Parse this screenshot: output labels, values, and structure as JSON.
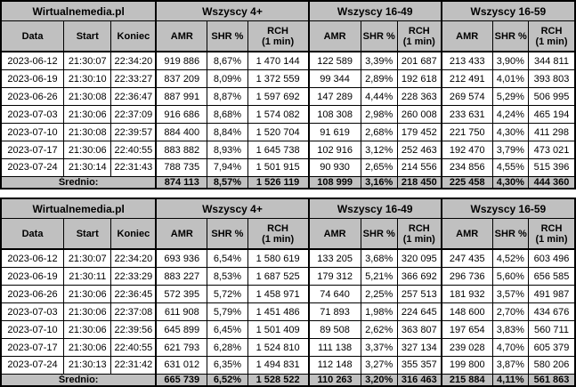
{
  "colors": {
    "header_bg": "#c0c0c0",
    "cell_bg": "#ffffff",
    "text": "#000000",
    "border": "#000000"
  },
  "columns": {
    "source": "Wirtualnemedia.pl",
    "groups": [
      "Wszyscy 4+",
      "Wszyscy 16-49",
      "Wszyscy 16-59"
    ],
    "left": [
      "Data",
      "Start",
      "Koniec"
    ],
    "metrics": [
      "AMR",
      "SHR %",
      "RCH\n(1 min)"
    ]
  },
  "tables": [
    {
      "rows": [
        [
          "2023-06-12",
          "21:30:07",
          "22:34:20",
          "919 886",
          "8,67%",
          "1 470 144",
          "122 589",
          "3,39%",
          "201 687",
          "213 433",
          "3,90%",
          "344 811"
        ],
        [
          "2023-06-19",
          "21:30:10",
          "22:33:27",
          "837 209",
          "8,09%",
          "1 372 559",
          "99 344",
          "2,89%",
          "192 618",
          "212 491",
          "4,01%",
          "393 803"
        ],
        [
          "2023-06-26",
          "21:30:08",
          "22:36:47",
          "887 991",
          "8,87%",
          "1 597 692",
          "147 289",
          "4,44%",
          "228 363",
          "269 574",
          "5,29%",
          "506 995"
        ],
        [
          "2023-07-03",
          "21:30:06",
          "22:37:09",
          "916 686",
          "8,68%",
          "1 574 082",
          "108 308",
          "2,98%",
          "260 008",
          "233 631",
          "4,24%",
          "465 194"
        ],
        [
          "2023-07-10",
          "21:30:08",
          "22:39:57",
          "884 400",
          "8,84%",
          "1 520 704",
          "91 619",
          "2,68%",
          "179 452",
          "221 750",
          "4,30%",
          "411 298"
        ],
        [
          "2023-07-17",
          "21:30:06",
          "22:40:55",
          "883 882",
          "8,93%",
          "1 645 738",
          "102 916",
          "3,12%",
          "252 463",
          "192 470",
          "3,79%",
          "473 021"
        ],
        [
          "2023-07-24",
          "21:30:14",
          "22:31:43",
          "788 735",
          "7,94%",
          "1 501 915",
          "90 930",
          "2,65%",
          "214 556",
          "234 856",
          "4,55%",
          "515 396"
        ]
      ],
      "summary": {
        "label": "Średnio:",
        "values": [
          "874 113",
          "8,57%",
          "1 526 119",
          "108 999",
          "3,16%",
          "218 450",
          "225 458",
          "4,30%",
          "444 360"
        ]
      }
    },
    {
      "rows": [
        [
          "2023-06-12",
          "21:30:07",
          "22:34:20",
          "693 936",
          "6,54%",
          "1 580 619",
          "133 205",
          "3,68%",
          "320 095",
          "247 435",
          "4,52%",
          "603 496"
        ],
        [
          "2023-06-19",
          "21:30:11",
          "22:33:29",
          "883 227",
          "8,53%",
          "1 687 525",
          "179 312",
          "5,21%",
          "366 692",
          "296 736",
          "5,60%",
          "656 585"
        ],
        [
          "2023-06-26",
          "21:30:06",
          "22:36:45",
          "572 395",
          "5,72%",
          "1 458 971",
          "74 640",
          "2,25%",
          "257 513",
          "181 932",
          "3,57%",
          "491 987"
        ],
        [
          "2023-07-03",
          "21:30:06",
          "22:37:08",
          "611 908",
          "5,79%",
          "1 451 486",
          "71 893",
          "1,98%",
          "224 645",
          "148 600",
          "2,70%",
          "434 676"
        ],
        [
          "2023-07-10",
          "21:30:06",
          "22:39:56",
          "645 899",
          "6,45%",
          "1 501 409",
          "89 508",
          "2,62%",
          "363 807",
          "197 654",
          "3,83%",
          "560 711"
        ],
        [
          "2023-07-17",
          "21:30:06",
          "22:40:55",
          "621 793",
          "6,28%",
          "1 524 810",
          "111 138",
          "3,37%",
          "327 134",
          "239 028",
          "4,70%",
          "605 379"
        ],
        [
          "2023-07-24",
          "21:30:13",
          "22:31:42",
          "631 012",
          "6,35%",
          "1 494 831",
          "112 148",
          "3,27%",
          "355 357",
          "199 800",
          "3,87%",
          "580 206"
        ]
      ],
      "summary": {
        "label": "Średnio:",
        "values": [
          "665 739",
          "6,52%",
          "1 528 522",
          "110 263",
          "3,20%",
          "316 463",
          "215 884",
          "4,11%",
          "561 863"
        ]
      }
    }
  ]
}
